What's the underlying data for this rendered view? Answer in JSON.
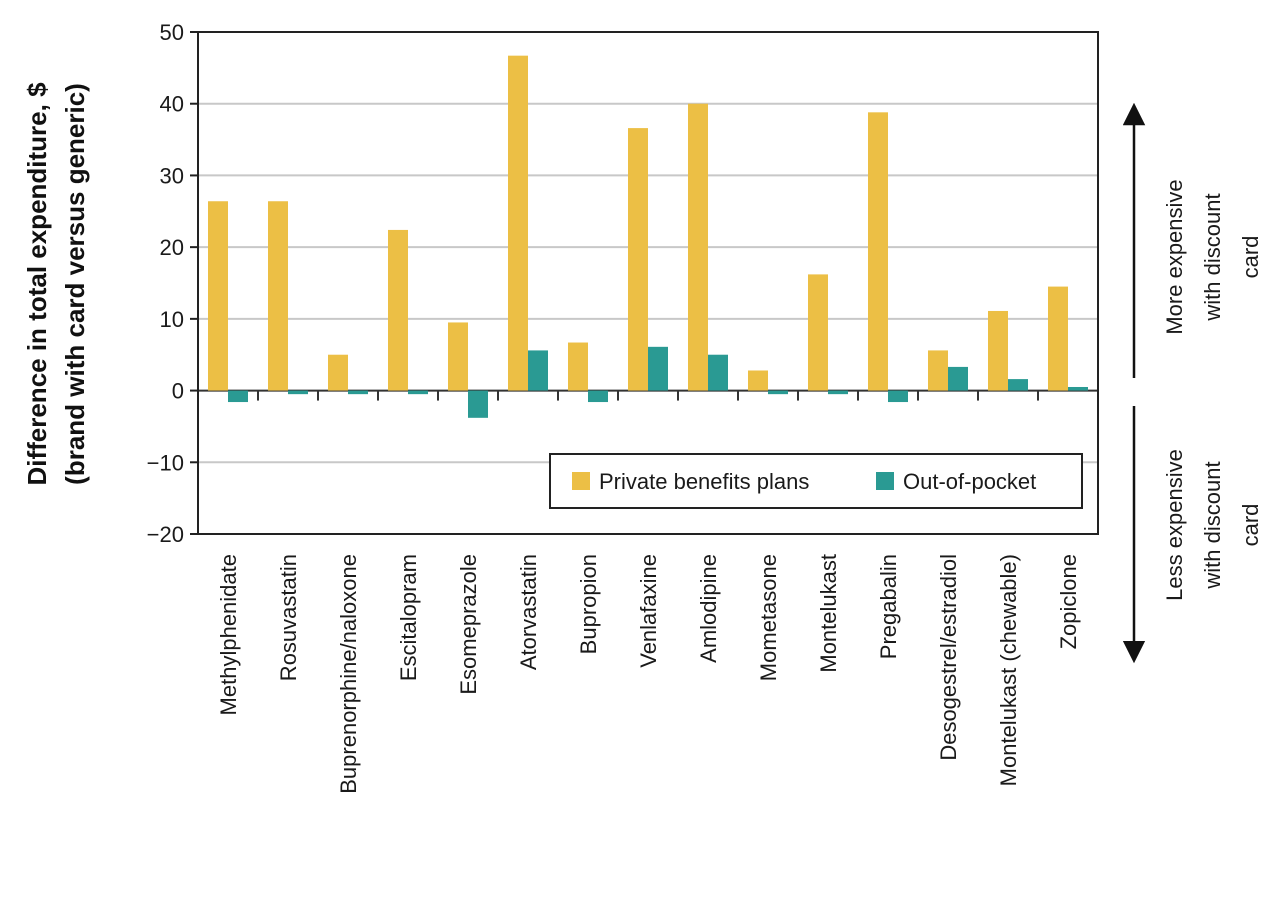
{
  "chart_data": {
    "type": "bar",
    "ylabel_line1": "Difference in total expenditure, $",
    "ylabel_line2": "(brand with card versus generic)",
    "xlabel": "",
    "ylim": [
      -20,
      50
    ],
    "yticks": [
      50,
      40,
      30,
      20,
      10,
      0,
      -10,
      -20
    ],
    "ytick_labels": [
      "50",
      "40",
      "30",
      "20",
      "10",
      "0",
      "−10",
      "−20"
    ],
    "grid": "horizontal",
    "legend_position": "lower-right",
    "categories": [
      "Methylphenidate",
      "Rosuvastatin",
      "Buprenorphine/naloxone",
      "Escitalopram",
      "Esomeprazole",
      "Atorvastatin",
      "Bupropion",
      "Venlafaxine",
      "Amlodipine",
      "Mometasone",
      "Montelukast",
      "Pregabalin",
      "Desogestrel/estradiol",
      "Montelukast (chewable)",
      "Zopiclone"
    ],
    "series": [
      {
        "name": "Private benefits plans",
        "color": "#ecbf45",
        "values": [
          26.4,
          26.4,
          5.0,
          22.4,
          9.5,
          46.7,
          6.7,
          36.6,
          40.0,
          2.8,
          16.2,
          38.8,
          5.6,
          11.1,
          14.5
        ]
      },
      {
        "name": "Out-of-pocket",
        "color": "#2a9a93",
        "values": [
          -1.6,
          -0.5,
          -0.5,
          -0.5,
          -3.8,
          5.6,
          -1.6,
          6.1,
          5.0,
          -0.5,
          -0.5,
          -1.6,
          3.3,
          1.6,
          0.5
        ]
      }
    ],
    "annotations": {
      "up_lines": [
        "More expensive",
        "with discount",
        "card"
      ],
      "down_lines": [
        "Less expensive",
        "with discount",
        "card"
      ]
    }
  }
}
